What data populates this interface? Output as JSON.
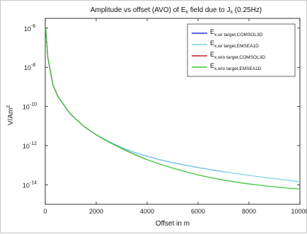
{
  "chart_data": {
    "type": "line",
    "title": {
      "main": "Amplitude vs offset (AVO) of E",
      "sub1": "x",
      "mid": " field due to J",
      "sub2": "x",
      "tail": " (0.25Hz)"
    },
    "xlabel": "Offset in m",
    "ylabel": {
      "base": "V/Am",
      "sup": "2"
    },
    "xlim": [
      0,
      10000
    ],
    "ylim_exponents": [
      -15,
      -5.5
    ],
    "y_scale": "log",
    "grid": false,
    "legend_position": "top-right",
    "x_ticks": [
      "0",
      "2000",
      "4000",
      "6000",
      "8000",
      "10000"
    ],
    "x_tick_values": [
      0,
      2000,
      4000,
      6000,
      8000,
      10000
    ],
    "y_ticks": [
      {
        "base": "10",
        "exp": "-6",
        "value": -6
      },
      {
        "base": "10",
        "exp": "-8",
        "value": -8
      },
      {
        "base": "10",
        "exp": "-10",
        "value": -10
      },
      {
        "base": "10",
        "exp": "-12",
        "value": -12
      },
      {
        "base": "10",
        "exp": "-14",
        "value": -14
      }
    ],
    "series": [
      {
        "name": {
          "main": "E",
          "sub": "x,w/ target,COMSOL3D"
        },
        "color": "#2030d8",
        "dashed": false,
        "x": [
          10,
          100,
          300,
          500,
          800,
          1000,
          1500,
          2000,
          2500,
          3000,
          3500,
          4000,
          4500,
          5000,
          5500,
          6000,
          6500,
          7000
        ],
        "log10_y": [
          -5.9,
          -7.5,
          -8.9,
          -9.5,
          -10.05,
          -10.4,
          -11.0,
          -11.45,
          -11.8,
          -12.1,
          -12.35,
          -12.55,
          -12.72,
          -12.87,
          -13.0,
          -13.12,
          -13.23,
          -13.33
        ]
      },
      {
        "name": {
          "main": "E",
          "sub": "x,w/ target,EMSEA1D"
        },
        "color": "#7fd4e6",
        "dashed": false,
        "x": [
          10,
          100,
          300,
          500,
          800,
          1000,
          1500,
          2000,
          2500,
          3000,
          3500,
          4000,
          4500,
          5000,
          5500,
          6000,
          6500,
          7000,
          7500,
          8000,
          8500,
          9000,
          9500,
          10000
        ],
        "log10_y": [
          -5.9,
          -7.5,
          -8.9,
          -9.5,
          -10.05,
          -10.4,
          -11.0,
          -11.45,
          -11.8,
          -12.1,
          -12.35,
          -12.55,
          -12.72,
          -12.87,
          -13.0,
          -13.12,
          -13.23,
          -13.33,
          -13.43,
          -13.52,
          -13.61,
          -13.69,
          -13.77,
          -13.85
        ]
      },
      {
        "name": {
          "main": "E",
          "sub": "x,w/o target,COMSOL3D"
        },
        "color": "#c0202a",
        "dashed": false,
        "x": [
          10,
          100,
          300,
          500,
          800,
          1000,
          1500,
          2000,
          2500,
          3000,
          3500,
          4000
        ],
        "log10_y": [
          -5.9,
          -7.5,
          -8.9,
          -9.5,
          -10.05,
          -10.4,
          -11.0,
          -11.45,
          -11.82,
          -12.15,
          -12.45,
          -12.72
        ]
      },
      {
        "name": {
          "main": "E",
          "sub": "x,w/o target,EMSEA1D"
        },
        "color": "#3ec83e",
        "dashed": false,
        "x": [
          10,
          100,
          300,
          500,
          800,
          1000,
          1500,
          2000,
          2500,
          3000,
          3500,
          4000,
          4500,
          5000,
          5500,
          6000,
          6500,
          7000,
          7500,
          8000,
          8500,
          9000,
          9500,
          10000
        ],
        "log10_y": [
          -5.9,
          -7.5,
          -8.9,
          -9.5,
          -10.05,
          -10.4,
          -11.0,
          -11.45,
          -11.82,
          -12.15,
          -12.45,
          -12.72,
          -12.95,
          -13.15,
          -13.33,
          -13.5,
          -13.64,
          -13.76,
          -13.87,
          -13.96,
          -14.04,
          -14.11,
          -14.17,
          -14.22
        ]
      }
    ]
  }
}
